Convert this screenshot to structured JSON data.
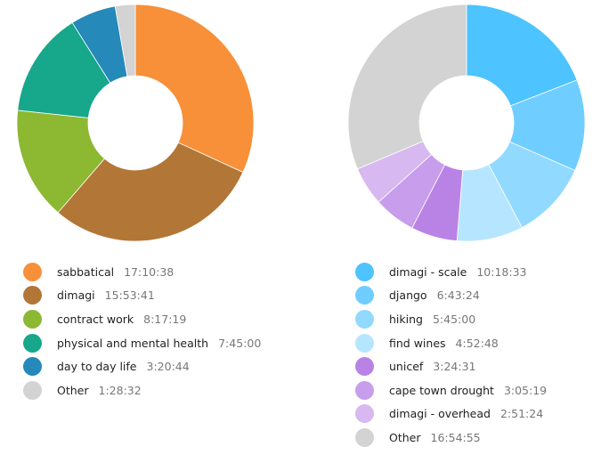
{
  "chart_data": [
    {
      "type": "pie",
      "donut": true,
      "legend_placement": "bottom",
      "slices": [
        {
          "label": "sabbatical",
          "value": "17:10:38",
          "color": "#F79039"
        },
        {
          "label": "dimagi",
          "value": "15:53:41",
          "color": "#B27636"
        },
        {
          "label": "contract work",
          "value": "8:17:19",
          "color": "#8DB832"
        },
        {
          "label": "physical and mental health",
          "value": "7:45:00",
          "color": "#17A78B"
        },
        {
          "label": "day to day life",
          "value": "3:20:44",
          "color": "#2589B9"
        },
        {
          "label": "Other",
          "value": "1:28:32",
          "color": "#D3D3D3"
        }
      ]
    },
    {
      "type": "pie",
      "donut": true,
      "legend_placement": "bottom",
      "slices": [
        {
          "label": "dimagi - scale",
          "value": "10:18:33",
          "color": "#4DC3FF"
        },
        {
          "label": "django",
          "value": "6:43:24",
          "color": "#6FCEFF"
        },
        {
          "label": "hiking",
          "value": "5:45:00",
          "color": "#91D9FF"
        },
        {
          "label": "find wines",
          "value": "4:52:48",
          "color": "#B6E6FF"
        },
        {
          "label": "unicef",
          "value": "3:24:31",
          "color": "#B983E6"
        },
        {
          "label": "cape town drought",
          "value": "3:05:19",
          "color": "#C79DEC"
        },
        {
          "label": "dimagi - overhead",
          "value": "2:51:24",
          "color": "#D8B8F0"
        },
        {
          "label": "Other",
          "value": "16:54:55",
          "color": "#D3D3D3"
        }
      ]
    }
  ]
}
